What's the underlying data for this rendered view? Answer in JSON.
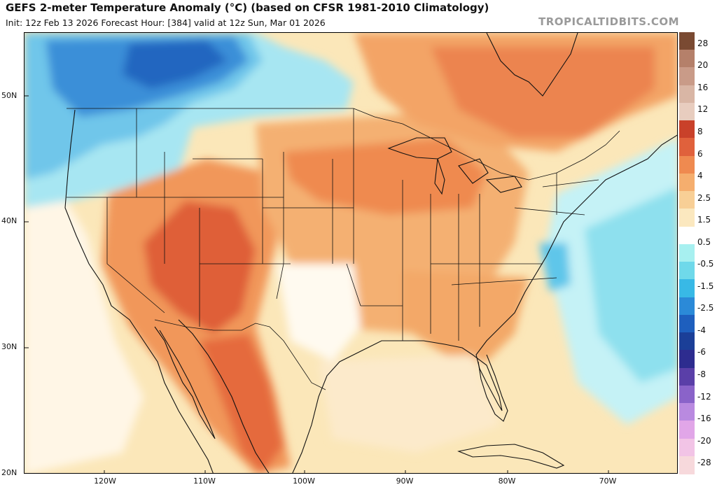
{
  "header": {
    "title": "GEFS 2-meter Temperature Anomaly (°C) (based on CFSR 1981-2010 Climatology)",
    "subtitle": "Init: 12z Feb 13 2026   Forecast Hour: [384]   valid at 12z Sun, Mar 01 2026",
    "brand": "TROPICALTIDBITS.COM"
  },
  "map": {
    "latitude_labels": [
      "50N",
      "40N",
      "30N",
      "20N"
    ],
    "longitude_labels": [
      "120W",
      "110W",
      "100W",
      "90W",
      "80W",
      "70W"
    ]
  },
  "colorbar": {
    "labels": [
      "28",
      "20",
      "16",
      "12",
      "8",
      "6",
      "4",
      "2.5",
      "1.5",
      "0.5",
      "-0.5",
      "-1.5",
      "-2.5",
      "-4",
      "-6",
      "-8",
      "-12",
      "-16",
      "-20",
      "-28"
    ],
    "colors": [
      "#7a4a32",
      "#b5806a",
      "#c99b88",
      "#d9b6a5",
      "#e8cdbf",
      "#c9412a",
      "#e0613c",
      "#ef8a50",
      "#f5ae6e",
      "#f8cf96",
      "#fbe8bf",
      "#ffffff",
      "#a7f0f0",
      "#6fd9ea",
      "#38b9e6",
      "#2b8ad8",
      "#1e5fbe",
      "#1b3f98",
      "#2d2c8f",
      "#5a3fa8",
      "#8a63c9",
      "#b98ae0",
      "#e1a6e8",
      "#f2c4e6",
      "#f7d9dc"
    ]
  }
}
